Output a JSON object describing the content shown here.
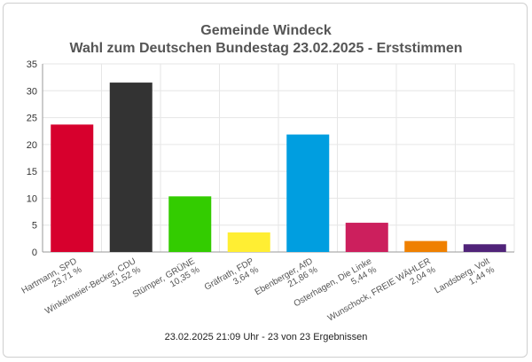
{
  "chart_data": {
    "type": "bar",
    "title": "Gemeinde Windeck",
    "subtitle": "Wahl zum Deutschen Bundestag 23.02.2025  - Erststimmen",
    "categories": [
      [
        "Hartmann, SPD",
        "23,71 %"
      ],
      [
        "Winkelmeier-Becker, CDU",
        "31,52 %"
      ],
      [
        "Stümper, GRÜNE",
        "10,35 %"
      ],
      [
        "Gräfrath, FDP",
        "3,64 %"
      ],
      [
        "Ebenberger, AfD",
        "21,86 %"
      ],
      [
        "Osterhagen, Die Linke",
        "5,44 %"
      ],
      [
        "Wunschock, FREIE WÄHLER",
        "2,04 %"
      ],
      [
        "Landsberg, Volt",
        "1,44 %"
      ]
    ],
    "values": [
      23.71,
      31.52,
      10.35,
      3.64,
      21.86,
      5.44,
      2.04,
      1.44
    ],
    "colors": [
      "#d7002d",
      "#333333",
      "#33cc00",
      "#ffee33",
      "#009ee0",
      "#cc1f5d",
      "#ef8000",
      "#502379"
    ],
    "yticks": [
      0,
      5,
      10,
      15,
      20,
      25,
      30,
      35
    ],
    "ylim": [
      0,
      35
    ],
    "grid": true,
    "xlabel": "",
    "ylabel": ""
  },
  "footer": "23.02.2025 21:09 Uhr - 23 von 23 Ergebnissen"
}
